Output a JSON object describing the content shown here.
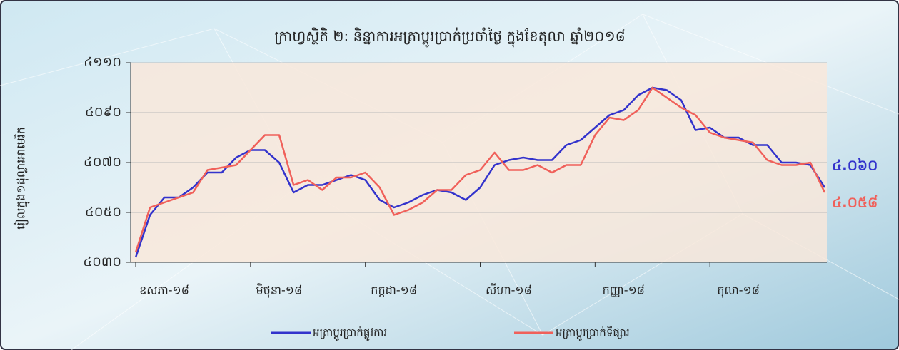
{
  "chart_data": {
    "type": "line",
    "title": "ក្រាហ្វស្ថិតិ ២: និន្នាការអត្រាប្តូរប្រាក់ប្រចាំថ្ងៃ ក្នុងខែតុលា ឆ្នាំ២០១៨",
    "y_label": "រៀលក្នុង១ដុល្លារអាមេរិក",
    "categories": [
      "ឧសភា-១៨",
      null,
      null,
      null,
      null,
      null,
      null,
      null,
      "មិថុនា-១៨",
      null,
      null,
      null,
      null,
      null,
      null,
      null,
      "កក្កដា-១៨",
      null,
      null,
      null,
      null,
      null,
      null,
      null,
      "សីហា-១៨",
      null,
      null,
      null,
      null,
      null,
      null,
      null,
      "កញ្ញា-១៨",
      null,
      null,
      null,
      null,
      null,
      null,
      null,
      "តុលា-១៨",
      null,
      null,
      null,
      null,
      null,
      null,
      null,
      null
    ],
    "ylim": [
      4030,
      4110
    ],
    "yticks": [
      {
        "value": 4030,
        "label": "៤០៣០"
      },
      {
        "value": 4050,
        "label": "៤០៥០"
      },
      {
        "value": 4070,
        "label": "៤០៧០"
      },
      {
        "value": 4090,
        "label": "៤០៩០"
      },
      {
        "value": 4110,
        "label": "៤១១០"
      }
    ],
    "grid": true,
    "legend": "bottom",
    "series": [
      {
        "name": "អត្រាប្តូរប្រាក់ផ្លូវការ",
        "color": "#3333cc",
        "values": [
          4032,
          4049,
          4056,
          4056,
          4060,
          4066,
          4066,
          4072,
          4075,
          4075,
          4070,
          4058,
          4061,
          4061,
          4063,
          4065,
          4063,
          4055,
          4052,
          4054,
          4057,
          4059,
          4058,
          4055,
          4060,
          4069,
          4071,
          4072,
          4071,
          4071,
          4077,
          4079,
          4084,
          4089,
          4091,
          4097,
          4100,
          4099,
          4095,
          4083,
          4084,
          4080,
          4080,
          4077,
          4077,
          4070,
          4070,
          4069,
          4060
        ],
        "value_labels": [
          null,
          null,
          null,
          null,
          null,
          null,
          null,
          null,
          null,
          null,
          null,
          null,
          null,
          null,
          null,
          null,
          null,
          null,
          null,
          null,
          null,
          null,
          null,
          null,
          null,
          null,
          null,
          null,
          null,
          null,
          null,
          null,
          null,
          null,
          null,
          null,
          null,
          null,
          null,
          null,
          null,
          null,
          null,
          null,
          null,
          null,
          null,
          null,
          "៤.០៦០"
        ]
      },
      {
        "name": "អត្រាប្តូរប្រាក់ទីផ្សារ",
        "color": "#f0605a",
        "values": [
          4034,
          4052,
          4054,
          4056,
          4058,
          4067,
          4068,
          4069,
          4075,
          4081,
          4081,
          4061,
          4063,
          4059,
          4064,
          4064,
          4066,
          4060,
          4049,
          4051,
          4054,
          4059,
          4059,
          4065,
          4067,
          4074,
          4067,
          4067,
          4069,
          4066,
          4069,
          4069,
          4081,
          4088,
          4087,
          4091,
          4100,
          4096,
          4092,
          4089,
          4082,
          4080,
          4079,
          4078,
          4071,
          4069,
          4069,
          4070,
          4058
        ],
        "value_labels": [
          null,
          null,
          null,
          null,
          null,
          null,
          null,
          null,
          null,
          null,
          null,
          null,
          null,
          null,
          null,
          null,
          null,
          null,
          null,
          null,
          null,
          null,
          null,
          null,
          null,
          null,
          null,
          null,
          null,
          null,
          null,
          null,
          null,
          null,
          null,
          null,
          null,
          null,
          null,
          null,
          null,
          null,
          null,
          null,
          null,
          null,
          null,
          null,
          "៤.០៥៨"
        ]
      }
    ]
  }
}
